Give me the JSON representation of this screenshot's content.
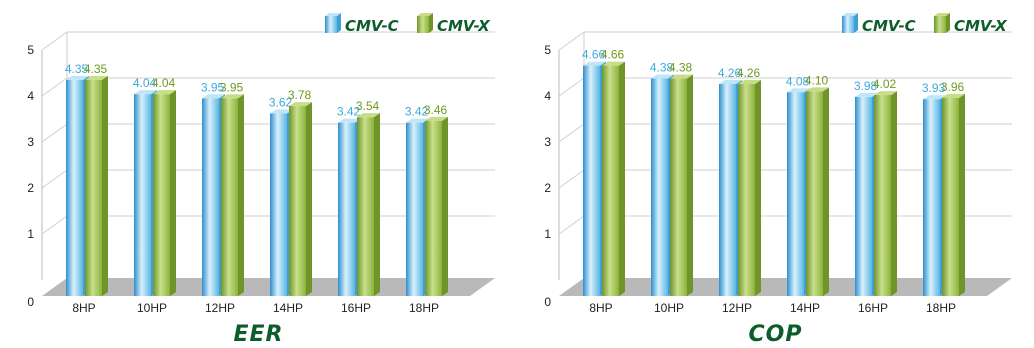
{
  "colors": {
    "series_c": "#5ab7e6",
    "series_x": "#8cb33a",
    "floor": "#b9b9b9",
    "grid": "#cfcfcf",
    "title": "#0d5c2b"
  },
  "chart_data": [
    {
      "type": "bar",
      "title": "EER",
      "categories": [
        "8HP",
        "10HP",
        "12HP",
        "14HP",
        "16HP",
        "18HP"
      ],
      "series": [
        {
          "name": "CMV-C",
          "values": [
            4.35,
            4.04,
            3.95,
            3.62,
            3.42,
            3.42
          ]
        },
        {
          "name": "CMV-X",
          "values": [
            4.35,
            4.04,
            3.95,
            3.78,
            3.54,
            3.46
          ]
        }
      ],
      "yticks": [
        "0",
        "1",
        "2",
        "3",
        "4",
        "5"
      ],
      "ylim": [
        0,
        5
      ],
      "grid": true,
      "legend": "top-right"
    },
    {
      "type": "bar",
      "title": "COP",
      "categories": [
        "8HP",
        "10HP",
        "12HP",
        "14HP",
        "16HP",
        "18HP"
      ],
      "series": [
        {
          "name": "CMV-C",
          "values": [
            4.66,
            4.38,
            4.26,
            4.08,
            3.98,
            3.93
          ]
        },
        {
          "name": "CMV-X",
          "values": [
            4.66,
            4.38,
            4.26,
            4.1,
            4.02,
            3.96
          ]
        }
      ],
      "yticks": [
        "0",
        "1",
        "2",
        "3",
        "4",
        "5"
      ],
      "ylim": [
        0,
        5
      ],
      "grid": true,
      "legend": "top-right"
    }
  ]
}
